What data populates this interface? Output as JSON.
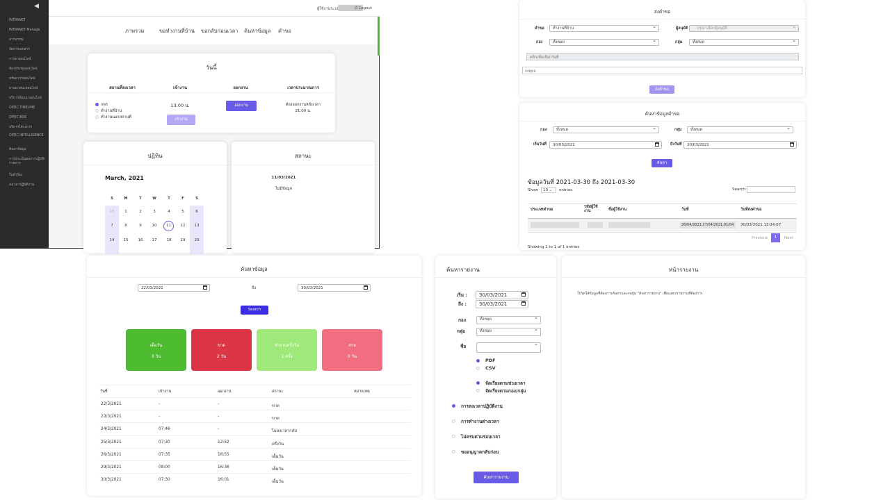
{
  "panel1": {
    "sidebar": [
      "INTRANET",
      "INTRANET Manage",
      "สารบรรณ",
      "จัดการเอกสาร",
      "การลาออนไลน์",
      "ห้องประชุมออนไลน์",
      "ทรัพยากรออนไลน์",
      "ยานพาหนะออนไลน์",
      "บริหารสัมมนาออนไลน์",
      "OPDC TIMELINE",
      "OPDC BOX",
      "บริหารโครงการ",
      "OPDC INTELLIGENCE",
      "ค้นหาข้อมูล",
      "การประเมินผลการปฏิบัติราชการ",
      "ใบคำร้อง",
      "ลงเวลาปฏิบัติงาน"
    ],
    "topbar": {
      "user_label": "ผู้ใช้งานระบบ :",
      "logout": "Logout"
    },
    "nav": [
      "ภาพรวม",
      "ขอทำงานที่บ้าน",
      "ขอกลับก่อนเวลา",
      "ค้นหาข้อมูล",
      "คำขอ"
    ],
    "today": {
      "title": "วันนี้",
      "headers": [
        "สถานที่ลงเวลา",
        "เข้างาน",
        "ออกงาน",
        "เวลาประมาณการ"
      ],
      "locations": [
        "กพร",
        "ทำงานที่บ้าน",
        "ทำงานนอกสถานที่"
      ],
      "checkin_time": "13:00 น.",
      "checkout_button": "ออกงาน",
      "checkin_button": "เข้างาน",
      "estimate_line1": "ต้องออกงานหลังเวลา",
      "estimate_line2": "21:00 น."
    },
    "calendar": {
      "title": "ปฏิทิน",
      "month": "March,  2021",
      "weekdays": [
        "S",
        "M",
        "T",
        "W",
        "T",
        "F",
        "S"
      ],
      "rows": [
        [
          "28",
          "1",
          "2",
          "3",
          "4",
          "5",
          "6"
        ],
        [
          "7",
          "8",
          "9",
          "10",
          "11",
          "12",
          "13"
        ],
        [
          "14",
          "15",
          "16",
          "17",
          "18",
          "19",
          "20"
        ]
      ],
      "today_marker": "11"
    },
    "status": {
      "title": "สถานะ",
      "date": "11/03/2021",
      "text": "ไม่มีข้อมูล"
    }
  },
  "panel2": {
    "title": "ส่งคำขอ",
    "request_label": "คำขอ",
    "request_value": "ทำงานที่บ้าน",
    "approver_label": "ผู้อนุมัติ",
    "approver_value": "กรุณาเลือกผู้อนุมัติ",
    "division_label": "กอง",
    "division_value": "ทั้งหมด",
    "group_label": "กลุ่ม",
    "group_value": "ทั้งหมด",
    "dates_placeholder": "คลิกเพื่อเลือกวันที่",
    "note_placeholder": "เหตุผล",
    "submit": "ส่งคำขอ"
  },
  "panel3": {
    "title": "ค้นหาข้อมูลคำขอ",
    "division_label": "กอง",
    "division_value": "ทั้งหมด",
    "group_label": "กลุ่ม",
    "group_value": "ทั้งหมด",
    "start_label": "เริ่มวันที่",
    "start_value": "30/03/2021",
    "end_label": "ถึงวันที่",
    "end_value": "30/03/2021",
    "search": "ค้นหา",
    "result_title": "ข้อมูลวันที่ 2021-03-30 ถึง 2021-03-30",
    "show_label": "Show",
    "show_value": "10",
    "entries_label": "entries",
    "search_label": "Search:",
    "headers": [
      "ประเภทคำขอ",
      "รหัสผู้ใช้งาน",
      "ชื่อผู้ใช้งาน",
      "วันที่",
      "วันที่ส่งคำขอ"
    ],
    "row": {
      "dates": "26/04/2021,27/04/2021,01/04",
      "sent": "30/03/2021 13:24:07"
    },
    "showing": "Showing 1 to 1 of 1 entries",
    "prev": "Previous",
    "page": "1",
    "next": "Next"
  },
  "panel4": {
    "title": "ค้นหาข้อมูล",
    "from_value": "22/03/2021",
    "to_label": "ถึง",
    "to_value": "30/03/2021",
    "search": "Search",
    "stats": [
      {
        "label": "เต็มวัน",
        "value": "3 วัน",
        "color": "#4cbb2e"
      },
      {
        "label": "ขาด",
        "value": "2 วัน",
        "color": "#dc3545"
      },
      {
        "label": "ทำงานครึ่งวัน",
        "value": "1 ครั้ง",
        "color": "#9fe87a"
      },
      {
        "label": "สาย",
        "value": "0 วัน",
        "color": "#f06e80"
      }
    ],
    "headers": [
      "วันที่",
      "เข้างาน",
      "ออกงาน",
      "สถานะ",
      "หมายเหตุ"
    ],
    "rows": [
      [
        "22/3/2021",
        "-",
        "-",
        "ขาด"
      ],
      [
        "23/3/2021",
        "-",
        "-",
        "ขาด"
      ],
      [
        "24/3/2021",
        "07:46",
        "-",
        "ไม่ลงเวลากลับ"
      ],
      [
        "25/3/2021",
        "07:30",
        "12:52",
        "ครึ่งวัน"
      ],
      [
        "26/3/2021",
        "07:35",
        "16:55",
        "เต็มวัน"
      ],
      [
        "29/3/2021",
        "08:00",
        "16:36",
        "เต็มวัน"
      ],
      [
        "30/3/2021",
        "07:30",
        "16:01",
        "เต็มวัน"
      ]
    ]
  },
  "panel5": {
    "title": "ค้นหารายงาน",
    "start_label": "เริ่ม :",
    "start_value": "30/03/2021",
    "end_label": "ถึง :",
    "end_value": "30/03/2021",
    "division_label": "กอง",
    "division_value": "ทั้งหมด",
    "group_label": "กลุ่ม",
    "group_value": "ทั้งหมด",
    "name_label": "ชื่อ",
    "formats": [
      "PDF",
      "CSV"
    ],
    "sorts": [
      "จัดเรียงตามช่วงเวลา",
      "จัดเรียงตามกอง/กลุ่ม"
    ],
    "reports": [
      "การลงเวลาปฏิบัติงาน",
      "การทำงานต่างเวลา",
      "ไม่ครบตามรอบเวลา",
      "ขออนุญาตกลับก่อน"
    ],
    "submit": "ค้นหารายงาน"
  },
  "panel6": {
    "title": "หน้ารายงาน",
    "hint": "โปรดใส่ข้อมูลที่ต้องการค้นหาและกดปุ่ม \"ค้นหารายงาน\" เพื่อแสดงรายงานที่ต้องการ"
  }
}
